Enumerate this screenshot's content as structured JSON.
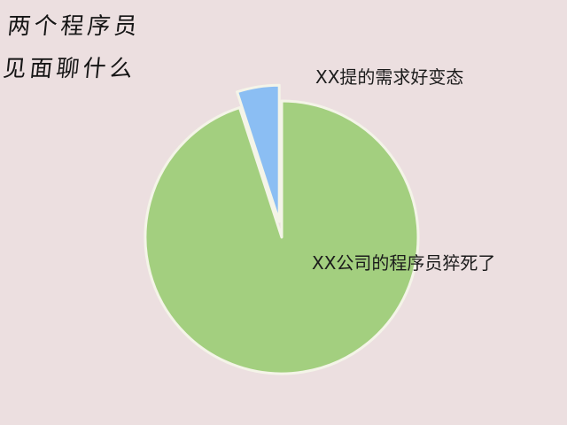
{
  "title": {
    "line1": "两个程序员",
    "line2": "见面聊什么"
  },
  "chart_data": {
    "type": "pie",
    "title": "两个程序员见面聊什么",
    "slices": [
      {
        "label": "XX公司的程序员猝死了",
        "value": 95,
        "color": "#a3cf7f",
        "exploded": false
      },
      {
        "label": "XX提的需求好变态",
        "value": 5,
        "color": "#8bbef3",
        "exploded": true
      }
    ],
    "start_angle_deg": 0,
    "direction": "clockwise",
    "legend": "none",
    "slice_border_color": "#f4f4e8"
  }
}
